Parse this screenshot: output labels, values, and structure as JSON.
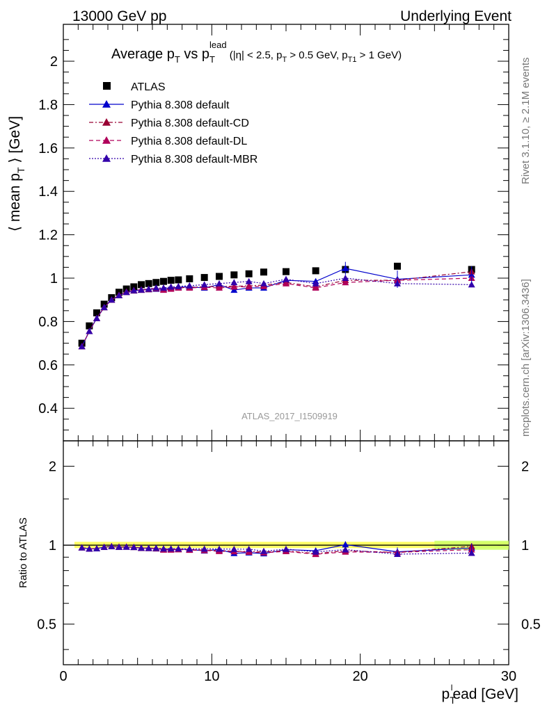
{
  "header": {
    "left": "13000 GeV pp",
    "right": "Underlying Event"
  },
  "plot": {
    "title": "Average p_T vs p_T^lead (|η| < 2.5, p_T > 0.5 GeV, p_T1 > 1 GeV)",
    "ylabel": "⟨ mean p_T ⟩ [GeV]",
    "xlabel": "p_T^lead [GeV]",
    "ratio_ylabel": "Ratio to ATLAS",
    "watermark": "ATLAS_2017_I1509919",
    "side_text_1": "Rivet 3.1.10, ≥ 2.1M events",
    "side_text_2": "mcplots.cern.ch [arXiv:1306.3436]"
  },
  "chart_data": {
    "type": "scatter",
    "title": "Average p_T vs p_T^lead",
    "xlabel": "p_T^lead [GeV]",
    "ylabel": "⟨ mean p_T ⟩ [GeV]",
    "xlim": [
      0,
      30
    ],
    "ylim": [
      0.25,
      2.17
    ],
    "y_ticks": [
      0.4,
      0.6,
      0.8,
      1,
      1.2,
      1.4,
      1.6,
      1.8,
      2
    ],
    "x_ticks": [
      0,
      10,
      20,
      30
    ],
    "ratio_ylim": [
      0.35,
      2.5
    ],
    "ratio_y_ticks": [
      0.5,
      1,
      2
    ],
    "ratio_log": true,
    "legend_position": "top-left",
    "x": [
      1.25,
      1.75,
      2.25,
      2.75,
      3.25,
      3.75,
      4.25,
      4.75,
      5.25,
      5.75,
      6.25,
      6.75,
      7.25,
      7.75,
      8.5,
      9.5,
      10.5,
      11.5,
      12.5,
      13.5,
      15,
      17,
      19,
      22.5,
      27.5
    ],
    "series": [
      {
        "name": "ATLAS",
        "color": "#000000",
        "marker": "square",
        "values": [
          0.7,
          0.78,
          0.84,
          0.88,
          0.91,
          0.935,
          0.95,
          0.96,
          0.97,
          0.975,
          0.98,
          0.985,
          0.99,
          0.992,
          0.997,
          1.003,
          1.008,
          1.015,
          1.02,
          1.028,
          1.03,
          1.034,
          1.04,
          1.055,
          1.04
        ]
      },
      {
        "name": "Pythia 8.308 default",
        "color": "#0000cc",
        "marker": "triangle",
        "line": "solid",
        "values": [
          0.685,
          0.755,
          0.815,
          0.865,
          0.9,
          0.92,
          0.935,
          0.942,
          0.945,
          0.948,
          0.95,
          0.952,
          0.955,
          0.958,
          0.96,
          0.955,
          0.97,
          0.945,
          0.955,
          0.955,
          0.99,
          0.985,
          1.045,
          0.995,
          1.015
        ]
      },
      {
        "name": "Pythia 8.308 default-CD",
        "color": "#990033",
        "marker": "triangle",
        "line": "dashdot",
        "values": [
          0.685,
          0.755,
          0.815,
          0.865,
          0.9,
          0.92,
          0.935,
          0.942,
          0.945,
          0.948,
          0.952,
          0.948,
          0.955,
          0.955,
          0.958,
          0.96,
          0.962,
          0.962,
          0.965,
          0.968,
          0.98,
          0.96,
          0.99,
          0.99,
          1.03
        ]
      },
      {
        "name": "Pythia 8.308 default-DL",
        "color": "#b0005a",
        "marker": "triangle",
        "line": "dashed",
        "values": [
          0.685,
          0.755,
          0.815,
          0.865,
          0.9,
          0.922,
          0.937,
          0.944,
          0.947,
          0.95,
          0.953,
          0.945,
          0.95,
          0.955,
          0.955,
          0.958,
          0.955,
          0.96,
          0.96,
          0.962,
          0.975,
          0.955,
          0.98,
          0.99,
          1.0
        ]
      },
      {
        "name": "Pythia 8.308 default-MBR",
        "color": "#3300aa",
        "marker": "triangle",
        "line": "dotted",
        "values": [
          0.685,
          0.755,
          0.815,
          0.865,
          0.9,
          0.92,
          0.935,
          0.943,
          0.946,
          0.95,
          0.955,
          0.955,
          0.96,
          0.962,
          0.965,
          0.97,
          0.975,
          0.98,
          0.985,
          0.975,
          0.995,
          0.975,
          1.0,
          0.975,
          0.97
        ]
      }
    ]
  }
}
